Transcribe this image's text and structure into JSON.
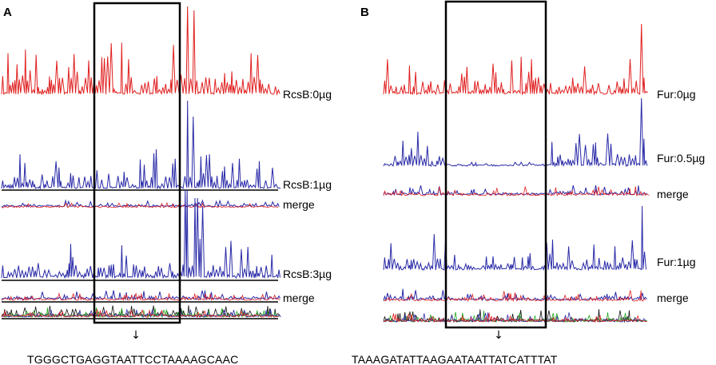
{
  "panels": [
    {
      "id": "A",
      "label": "A",
      "traces": [
        {
          "label": "RcsB:0µg",
          "color": "#e02020",
          "kind": "red",
          "amp": 1.0
        },
        {
          "label": "RcsB:1µg",
          "color": "#2a2aa8",
          "kind": "blue",
          "amp": 1.0
        },
        {
          "label": "merge",
          "color": "#2a2aa8",
          "kind": "merge",
          "amp": 1.0
        },
        {
          "label": "RcsB:3µg",
          "color": "#2a2aa8",
          "kind": "blue",
          "amp": 1.0
        },
        {
          "label": "merge",
          "color": "#2a2aa8",
          "kind": "merge",
          "amp": 1.0
        },
        {
          "label": "",
          "color": "#222222",
          "kind": "seq",
          "amp": 1.0
        }
      ],
      "sequence": "TGGGCTGAGGTAATTCCTAAAAGCAAC",
      "arrow": "↓"
    },
    {
      "id": "B",
      "label": "B",
      "traces": [
        {
          "label": "Fur:0µg",
          "color": "#e02020",
          "kind": "red",
          "amp": 1.0
        },
        {
          "label": "Fur:0.5µg",
          "color": "#2a2aa8",
          "kind": "blue",
          "amp": 1.0
        },
        {
          "label": "merge",
          "color": "#2a2aa8",
          "kind": "merge",
          "amp": 1.0
        },
        {
          "label": "Fur:1µg",
          "color": "#2a2aa8",
          "kind": "blue",
          "amp": 1.0
        },
        {
          "label": "merge",
          "color": "#2a2aa8",
          "kind": "merge",
          "amp": 1.0
        },
        {
          "label": "",
          "color": "#222222",
          "kind": "seq",
          "amp": 1.0
        }
      ],
      "sequence": "TAAAGATATTAAGAATAATTATCATTTAT",
      "arrow": "↓"
    }
  ],
  "colors": {
    "red": "#e02020",
    "blue": "#2a2aa8",
    "green": "#1fa51f",
    "black": "#111111",
    "box": "#000000"
  }
}
